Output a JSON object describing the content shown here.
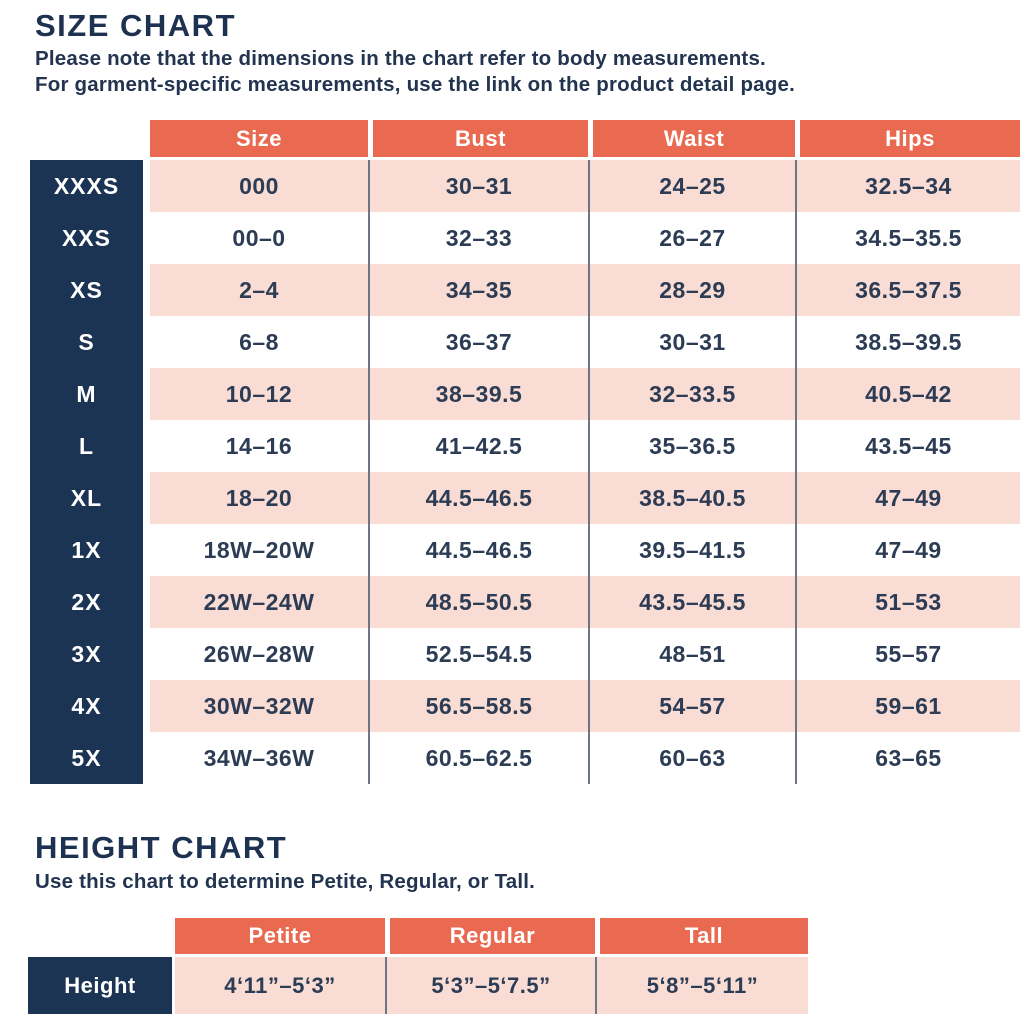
{
  "colors": {
    "accent_orange": "#e96a50",
    "row_pink": "#f9dcd4",
    "navy": "#1c3454",
    "text_navy": "#2c3c55",
    "divider_gray": "#6b7585"
  },
  "size_chart": {
    "title": "SIZE CHART",
    "subtitle_line1": "Please note that the dimensions in the chart refer to body measurements.",
    "subtitle_line2": "For garment-specific measurements, use the link on the product detail page.",
    "columns": [
      "Size",
      "Bust",
      "Waist",
      "Hips"
    ],
    "rows": [
      {
        "label": "XXXS",
        "size": "000",
        "bust": "30–31",
        "waist": "24–25",
        "hips": "32.5–34"
      },
      {
        "label": "XXS",
        "size": "00–0",
        "bust": "32–33",
        "waist": "26–27",
        "hips": "34.5–35.5"
      },
      {
        "label": "XS",
        "size": "2–4",
        "bust": "34–35",
        "waist": "28–29",
        "hips": "36.5–37.5"
      },
      {
        "label": "S",
        "size": "6–8",
        "bust": "36–37",
        "waist": "30–31",
        "hips": "38.5–39.5"
      },
      {
        "label": "M",
        "size": "10–12",
        "bust": "38–39.5",
        "waist": "32–33.5",
        "hips": "40.5–42"
      },
      {
        "label": "L",
        "size": "14–16",
        "bust": "41–42.5",
        "waist": "35–36.5",
        "hips": "43.5–45"
      },
      {
        "label": "XL",
        "size": "18–20",
        "bust": "44.5–46.5",
        "waist": "38.5–40.5",
        "hips": "47–49"
      },
      {
        "label": "1X",
        "size": "18W–20W",
        "bust": "44.5–46.5",
        "waist": "39.5–41.5",
        "hips": "47–49"
      },
      {
        "label": "2X",
        "size": "22W–24W",
        "bust": "48.5–50.5",
        "waist": "43.5–45.5",
        "hips": "51–53"
      },
      {
        "label": "3X",
        "size": "26W–28W",
        "bust": "52.5–54.5",
        "waist": "48–51",
        "hips": "55–57"
      },
      {
        "label": "4X",
        "size": "30W–32W",
        "bust": "56.5–58.5",
        "waist": "54–57",
        "hips": "59–61"
      },
      {
        "label": "5X",
        "size": "34W–36W",
        "bust": "60.5–62.5",
        "waist": "60–63",
        "hips": "63–65"
      }
    ]
  },
  "height_chart": {
    "title": "HEIGHT CHART",
    "subtitle": "Use this chart to determine Petite, Regular, or Tall.",
    "columns": [
      "Petite",
      "Regular",
      "Tall"
    ],
    "row_label": "Height",
    "values": [
      "4‘11”–5‘3”",
      "5‘3”–5‘7.5”",
      "5‘8”–5‘11”"
    ]
  }
}
